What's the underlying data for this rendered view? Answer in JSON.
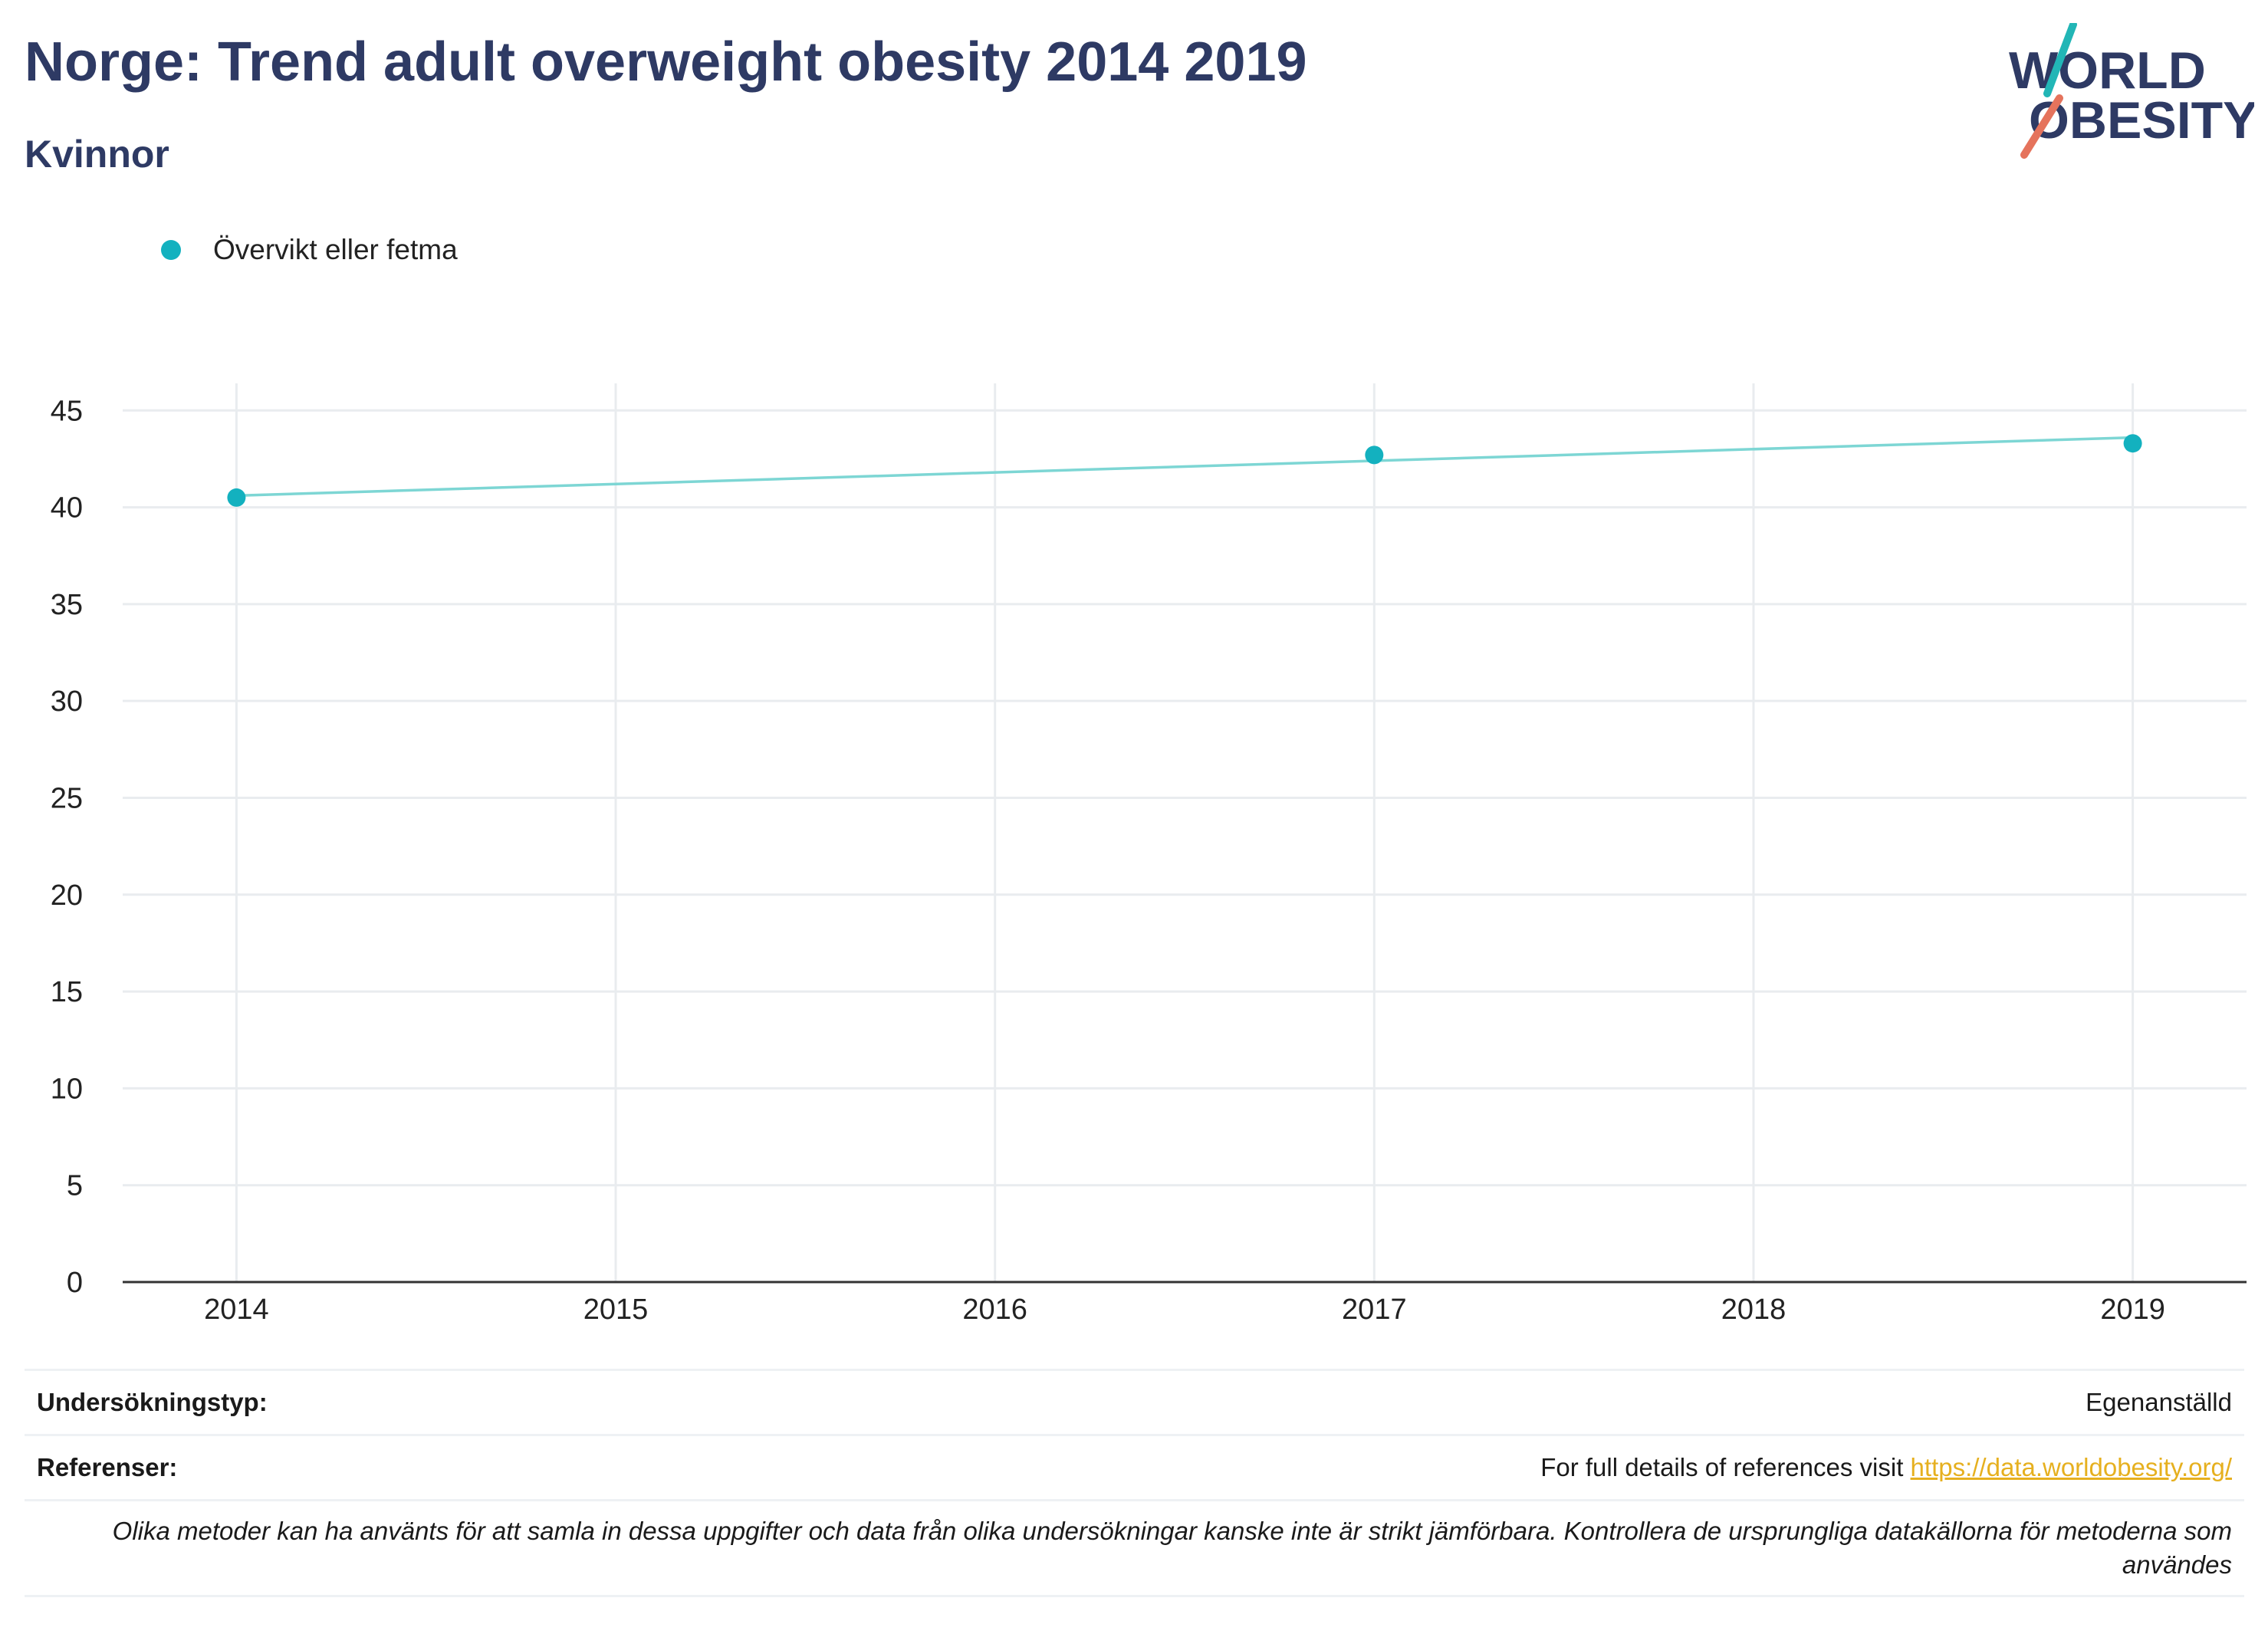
{
  "header": {
    "title": "Norge: Trend adult overweight obesity 2014 2019",
    "subtitle": "Kvinnor"
  },
  "logo": {
    "line1": "WORLD",
    "line2": "OBESITY",
    "text_color": "#2e3a64",
    "slash_top_color": "#22b6b6",
    "slash_bottom_color": "#e5735c"
  },
  "colors": {
    "marker": "#13b1bf",
    "line": "#7dd6d4",
    "grid": "#e9ecef",
    "axis": "#333333"
  },
  "chart_data": {
    "type": "line",
    "categories": [
      "2014",
      "2015",
      "2016",
      "2017",
      "2018",
      "2019"
    ],
    "x_ticks": [
      "2014",
      "2015",
      "2016",
      "2017",
      "2018",
      "2019"
    ],
    "y_ticks": [
      0,
      5,
      10,
      15,
      20,
      25,
      30,
      35,
      40,
      45
    ],
    "ylim": [
      0,
      46
    ],
    "xlim": [
      2013.7,
      2019.3
    ],
    "grid": true,
    "legend_position": "top-left",
    "series": [
      {
        "name": "Övervikt eller fetma",
        "points": [
          {
            "x": 2014,
            "y": 40.5
          },
          {
            "x": 2017,
            "y": 42.7
          },
          {
            "x": 2019,
            "y": 43.3
          }
        ],
        "trend": [
          {
            "x": 2014,
            "y": 40.6
          },
          {
            "x": 2019,
            "y": 43.6
          }
        ]
      }
    ]
  },
  "footer": {
    "survey_label": "Undersökningstyp:",
    "survey_value": "Egenanställd",
    "refs_label": "Referenser:",
    "refs_text": "For full details of references visit ",
    "refs_link": "https://data.worldobesity.org/",
    "note": "Olika metoder kan ha använts för att samla in dessa uppgifter och data från olika undersökningar kanske inte är strikt jämförbara. Kontrollera de ursprungliga datakällorna för metoderna som användes"
  }
}
